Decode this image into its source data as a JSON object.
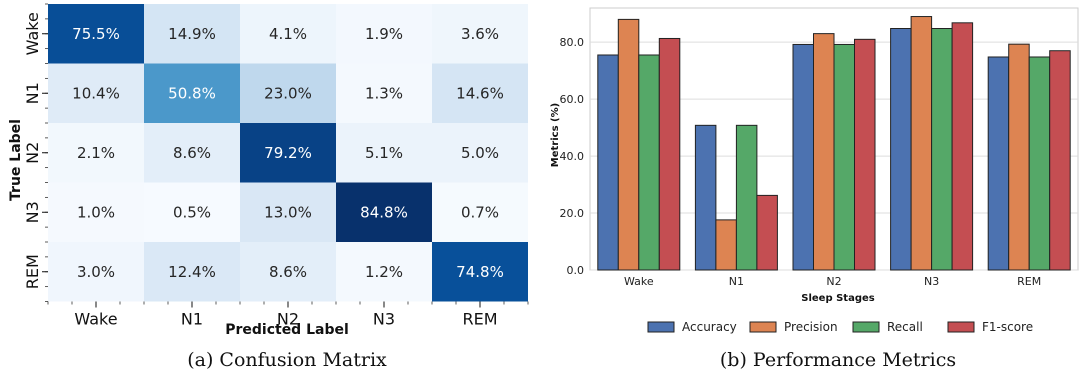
{
  "chart_data": [
    {
      "type": "heatmap",
      "caption": "(a) Confusion Matrix",
      "xlabel": "Predicted Label",
      "ylabel": "True Label",
      "x_categories": [
        "Wake",
        "N1",
        "N2",
        "N3",
        "REM"
      ],
      "y_categories": [
        "Wake",
        "N1",
        "N2",
        "N3",
        "REM"
      ],
      "values": [
        [
          75.5,
          14.9,
          4.1,
          1.9,
          3.6
        ],
        [
          10.4,
          50.8,
          23.0,
          1.3,
          14.6
        ],
        [
          2.1,
          8.6,
          79.2,
          5.1,
          5.0
        ],
        [
          1.0,
          0.5,
          13.0,
          84.8,
          0.7
        ],
        [
          3.0,
          12.4,
          8.6,
          1.2,
          74.8
        ]
      ],
      "labels": [
        [
          "75.5%",
          "14.9%",
          "4.1%",
          "1.9%",
          "3.6%"
        ],
        [
          "10.4%",
          "50.8%",
          "23.0%",
          "1.3%",
          "14.6%"
        ],
        [
          "2.1%",
          "8.6%",
          "79.2%",
          "5.1%",
          "5.0%"
        ],
        [
          "1.0%",
          "0.5%",
          "13.0%",
          "84.8%",
          "0.7%"
        ],
        [
          "3.0%",
          "12.4%",
          "8.6%",
          "1.2%",
          "74.8%"
        ]
      ],
      "colormap": "Blues",
      "vmin": 0,
      "vmax": 85
    },
    {
      "type": "bar",
      "caption": "(b) Performance Metrics",
      "xlabel": "Sleep Stages",
      "ylabel": "Metrics (%)",
      "categories": [
        "Wake",
        "N1",
        "N2",
        "N3",
        "REM"
      ],
      "ylim": [
        0,
        92
      ],
      "yticks": [
        "0.0",
        "20.0",
        "40.0",
        "60.0",
        "80.0"
      ],
      "grid": true,
      "legend_position": "bottom",
      "series": [
        {
          "name": "Accuracy",
          "color": "#4c72b0",
          "values": [
            75.5,
            50.8,
            79.2,
            84.8,
            74.8
          ]
        },
        {
          "name": "Precision",
          "color": "#dd8452",
          "values": [
            88.0,
            17.6,
            83.0,
            89.0,
            79.3
          ]
        },
        {
          "name": "Recall",
          "color": "#55a868",
          "values": [
            75.5,
            50.8,
            79.2,
            84.8,
            74.8
          ]
        },
        {
          "name": "F1-score",
          "color": "#c44e52",
          "values": [
            81.3,
            26.2,
            81.0,
            86.8,
            77.0
          ]
        }
      ]
    }
  ]
}
